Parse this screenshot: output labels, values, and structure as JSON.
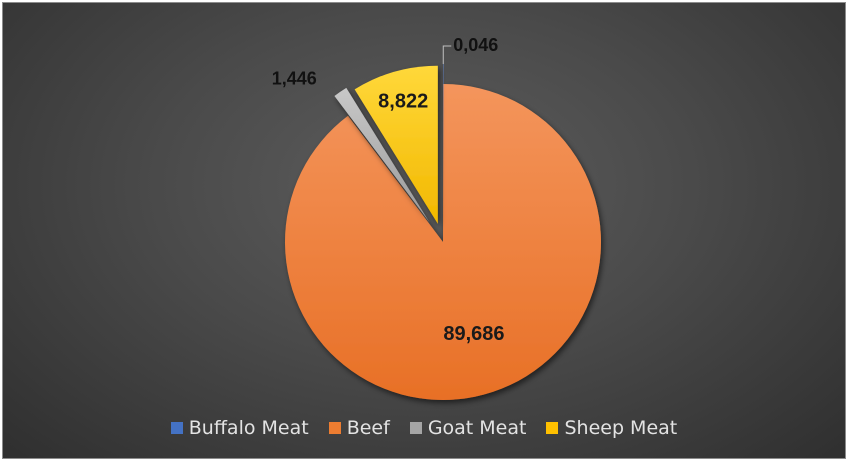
{
  "chart_data": {
    "type": "pie",
    "title": "",
    "categories": [
      "Buffalo Meat",
      "Beef",
      "Goat Meat",
      "Sheep Meat"
    ],
    "values": [
      0.046,
      89.686,
      1.446,
      8.822
    ],
    "data_labels": [
      "0,046",
      "89,686",
      "1,446",
      "8,822"
    ],
    "colors": [
      "#4472c4",
      "#ed7d31",
      "#a5a5a5",
      "#ffc000"
    ],
    "exploded": true,
    "legend_position": "bottom",
    "start_angle": "12 o'clock, clockwise"
  }
}
